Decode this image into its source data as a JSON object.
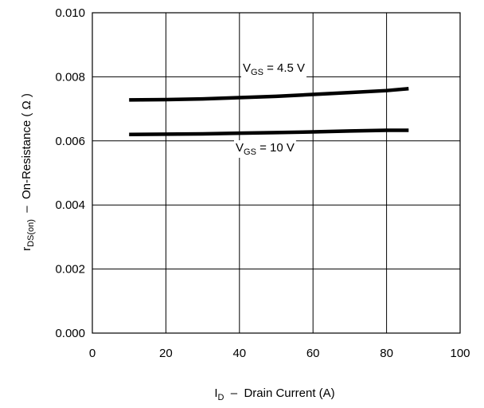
{
  "chart_data": {
    "type": "line",
    "title": "",
    "xlabel": {
      "main": "I",
      "sub": "D",
      "rest": "  –  Drain Current (A)"
    },
    "ylabel": {
      "main": "r",
      "sub": "DS(on)",
      "rest": "  –  On-Resistance ( Ω )"
    },
    "xlim": [
      0,
      100
    ],
    "ylim": [
      0.0,
      0.01
    ],
    "xticks": [
      "0",
      "20",
      "40",
      "60",
      "80",
      "100"
    ],
    "yticks": [
      "0.000",
      "0.002",
      "0.004",
      "0.006",
      "0.008",
      "0.010"
    ],
    "grid": true,
    "line_color": "#000000",
    "series": [
      {
        "label_main": "V",
        "label_sub": "GS",
        "label_rest": " = 4.5 V",
        "x": [
          10,
          20,
          30,
          40,
          50,
          60,
          70,
          80,
          86
        ],
        "y": [
          0.00728,
          0.00729,
          0.00731,
          0.00735,
          0.00739,
          0.00745,
          0.00751,
          0.00757,
          0.00763
        ]
      },
      {
        "label_main": "V",
        "label_sub": "GS",
        "label_rest": " = 10 V",
        "x": [
          10,
          20,
          30,
          40,
          50,
          60,
          70,
          80,
          86
        ],
        "y": [
          0.0062,
          0.00621,
          0.00622,
          0.00624,
          0.00626,
          0.00628,
          0.00631,
          0.00633,
          0.00633
        ]
      }
    ]
  }
}
